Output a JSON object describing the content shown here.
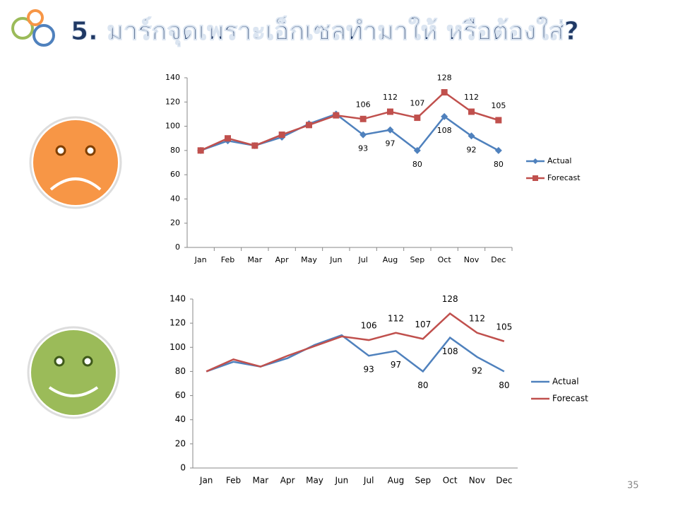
{
  "header": {
    "title": "5. มาร์กจุดเพราะเอ็กเซลทำมาให้  หรือต้องใส่?"
  },
  "page_number": "35",
  "chart_data": [
    {
      "type": "line",
      "markers": true,
      "categories": [
        "Jan",
        "Feb",
        "Mar",
        "Apr",
        "May",
        "Jun",
        "Jul",
        "Aug",
        "Sep",
        "Oct",
        "Nov",
        "Dec"
      ],
      "series": [
        {
          "name": "Actual",
          "color": "#4f81bd",
          "values": [
            80,
            88,
            84,
            91,
            102,
            110,
            93,
            97,
            80,
            108,
            92,
            80
          ],
          "value_labels": [
            null,
            null,
            null,
            null,
            null,
            null,
            "93",
            "97",
            "80",
            "108",
            "92",
            "80"
          ]
        },
        {
          "name": "Forecast",
          "color": "#c0504d",
          "values": [
            80,
            90,
            84,
            93,
            101,
            109,
            106,
            112,
            107,
            128,
            112,
            105
          ],
          "value_labels": [
            null,
            null,
            null,
            null,
            null,
            null,
            "106",
            "112",
            "107",
            "128",
            "112",
            "105"
          ]
        }
      ],
      "ylim": [
        0,
        140
      ],
      "yticks": [
        0,
        20,
        40,
        60,
        80,
        100,
        120,
        140
      ],
      "legend": "right"
    },
    {
      "type": "line",
      "markers": false,
      "categories": [
        "Jan",
        "Feb",
        "Mar",
        "Apr",
        "May",
        "Jun",
        "Jul",
        "Aug",
        "Sep",
        "Oct",
        "Nov",
        "Dec"
      ],
      "series": [
        {
          "name": "Actual",
          "color": "#4f81bd",
          "values": [
            80,
            88,
            84,
            91,
            102,
            110,
            93,
            97,
            80,
            108,
            92,
            80
          ],
          "value_labels": [
            null,
            null,
            null,
            null,
            null,
            null,
            "93",
            "97",
            "80",
            "108",
            "92",
            "80"
          ]
        },
        {
          "name": "Forecast",
          "color": "#c0504d",
          "values": [
            80,
            90,
            84,
            93,
            101,
            109,
            106,
            112,
            107,
            128,
            112,
            105
          ],
          "value_labels": [
            null,
            null,
            null,
            null,
            null,
            null,
            "106",
            "112",
            "107",
            "128",
            "112",
            "105"
          ]
        }
      ],
      "ylim": [
        0,
        140
      ],
      "yticks": [
        0,
        20,
        40,
        60,
        80,
        100,
        120,
        140
      ],
      "legend": "right"
    }
  ]
}
